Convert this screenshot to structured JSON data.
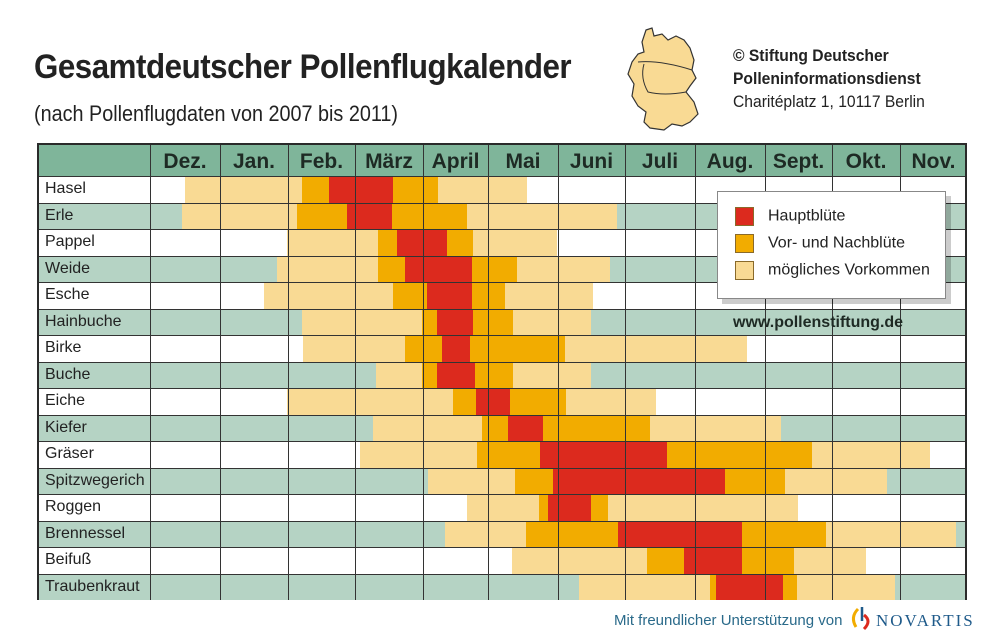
{
  "header": {
    "title": "Gesamtdeutscher Pollenflugkalender",
    "subtitle": "(nach Pollenflugdaten von 2007 bis 2011)",
    "credit_line1": "© Stiftung Deutscher",
    "credit_line2": "Polleninformationsdienst",
    "credit_address": "Charitéplatz 1, 10117 Berlin"
  },
  "url": "www.pollenstiftung.de",
  "footer": {
    "support_text": "Mit freundlicher Unterstützung von",
    "sponsor": "NOVARTIS"
  },
  "colors": {
    "main": "#dc2a1e",
    "pre": "#f2ac00",
    "light": "#f9da94",
    "header": "#7fb59a",
    "row_alt": "#b5d3c4",
    "map": "#f9da94"
  },
  "chart_data": {
    "type": "heatmap",
    "title": "Gesamtdeutscher Pollenflugkalender",
    "categories": [
      "Dez.",
      "Jan.",
      "Feb.",
      "März",
      "April",
      "Mai",
      "Juni",
      "Juli",
      "Aug.",
      "Sept.",
      "Okt.",
      "Nov."
    ],
    "x_unit": "months from start of December",
    "legend": {
      "placement": "top-right",
      "entries": [
        {
          "level": "main",
          "label": "Hauptblüte"
        },
        {
          "level": "pre",
          "label": "Vor- und Nachblüte"
        },
        {
          "level": "light",
          "label": "mögliches Vorkommen"
        }
      ]
    },
    "rows": [
      {
        "name": "Hasel",
        "segments": [
          [
            0.5,
            2.21,
            "light"
          ],
          [
            2.21,
            2.61,
            "pre"
          ],
          [
            2.61,
            3.56,
            "main"
          ],
          [
            3.56,
            4.23,
            "pre"
          ],
          [
            4.23,
            5.56,
            "light"
          ]
        ]
      },
      {
        "name": "Erle",
        "segments": [
          [
            0.46,
            2.13,
            "light"
          ],
          [
            2.13,
            2.88,
            "pre"
          ],
          [
            2.88,
            3.54,
            "main"
          ],
          [
            3.54,
            4.68,
            "pre"
          ],
          [
            4.68,
            6.88,
            "light"
          ]
        ]
      },
      {
        "name": "Pappel",
        "segments": [
          [
            1.99,
            3.34,
            "light"
          ],
          [
            3.34,
            3.62,
            "pre"
          ],
          [
            3.62,
            4.37,
            "main"
          ],
          [
            4.37,
            4.77,
            "pre"
          ],
          [
            4.77,
            5.99,
            "light"
          ]
        ]
      },
      {
        "name": "Weide",
        "segments": [
          [
            1.84,
            3.34,
            "light"
          ],
          [
            3.34,
            3.74,
            "pre"
          ],
          [
            3.74,
            4.75,
            "main"
          ],
          [
            4.75,
            5.41,
            "pre"
          ],
          [
            5.41,
            6.78,
            "light"
          ]
        ]
      },
      {
        "name": "Esche",
        "segments": [
          [
            1.64,
            3.56,
            "light"
          ],
          [
            3.56,
            4.06,
            "pre"
          ],
          [
            4.06,
            4.75,
            "main"
          ],
          [
            4.75,
            5.24,
            "pre"
          ],
          [
            5.24,
            6.52,
            "light"
          ]
        ]
      },
      {
        "name": "Hainbuche",
        "segments": [
          [
            2.21,
            3.99,
            "light"
          ],
          [
            3.99,
            4.22,
            "pre"
          ],
          [
            4.22,
            4.77,
            "main"
          ],
          [
            4.77,
            5.36,
            "pre"
          ],
          [
            5.36,
            6.49,
            "light"
          ]
        ]
      },
      {
        "name": "Birke",
        "segments": [
          [
            2.22,
            3.74,
            "light"
          ],
          [
            3.74,
            4.29,
            "pre"
          ],
          [
            4.29,
            4.72,
            "main"
          ],
          [
            4.72,
            6.1,
            "pre"
          ],
          [
            6.1,
            8.74,
            "light"
          ]
        ]
      },
      {
        "name": "Buche",
        "segments": [
          [
            3.31,
            3.99,
            "light"
          ],
          [
            3.99,
            4.22,
            "pre"
          ],
          [
            4.22,
            4.8,
            "main"
          ],
          [
            4.8,
            5.36,
            "pre"
          ],
          [
            5.36,
            6.49,
            "light"
          ]
        ]
      },
      {
        "name": "Eiche",
        "segments": [
          [
            1.99,
            4.46,
            "light"
          ],
          [
            4.46,
            4.82,
            "pre"
          ],
          [
            4.82,
            5.31,
            "main"
          ],
          [
            5.31,
            6.12,
            "pre"
          ],
          [
            6.12,
            7.44,
            "light"
          ]
        ]
      },
      {
        "name": "Kiefer",
        "segments": [
          [
            3.26,
            4.91,
            "light"
          ],
          [
            4.91,
            5.29,
            "pre"
          ],
          [
            5.29,
            5.79,
            "main"
          ],
          [
            5.79,
            7.36,
            "pre"
          ],
          [
            7.36,
            9.24,
            "light"
          ]
        ]
      },
      {
        "name": "Gräser",
        "segments": [
          [
            3.07,
            4.83,
            "light"
          ],
          [
            4.83,
            5.74,
            "pre"
          ],
          [
            5.74,
            7.6,
            "main"
          ],
          [
            7.6,
            9.7,
            "pre"
          ],
          [
            9.7,
            11.45,
            "light"
          ]
        ]
      },
      {
        "name": "Spitzwegerich",
        "segments": [
          [
            4.08,
            5.39,
            "light"
          ],
          [
            5.39,
            5.93,
            "pre"
          ],
          [
            5.93,
            8.43,
            "main"
          ],
          [
            8.43,
            9.3,
            "pre"
          ],
          [
            9.3,
            10.81,
            "light"
          ]
        ]
      },
      {
        "name": "Roggen",
        "segments": [
          [
            4.68,
            5.73,
            "light"
          ],
          [
            5.73,
            5.86,
            "pre"
          ],
          [
            5.86,
            6.49,
            "main"
          ],
          [
            6.49,
            6.74,
            "pre"
          ],
          [
            6.74,
            9.49,
            "light"
          ]
        ]
      },
      {
        "name": "Brennessel",
        "segments": [
          [
            4.34,
            5.54,
            "light"
          ],
          [
            5.54,
            6.9,
            "pre"
          ],
          [
            6.9,
            8.67,
            "main"
          ],
          [
            8.67,
            9.91,
            "pre"
          ],
          [
            9.91,
            11.84,
            "light"
          ]
        ]
      },
      {
        "name": "Beifuß",
        "segments": [
          [
            5.34,
            7.31,
            "light"
          ],
          [
            7.31,
            7.84,
            "pre"
          ],
          [
            7.84,
            8.67,
            "main"
          ],
          [
            8.67,
            9.43,
            "pre"
          ],
          [
            9.43,
            10.5,
            "light"
          ]
        ]
      },
      {
        "name": "Traubenkraut",
        "segments": [
          [
            6.31,
            8.21,
            "light"
          ],
          [
            8.21,
            8.3,
            "pre"
          ],
          [
            8.3,
            9.27,
            "main"
          ],
          [
            9.27,
            9.48,
            "pre"
          ],
          [
            9.48,
            10.93,
            "light"
          ]
        ]
      }
    ]
  }
}
